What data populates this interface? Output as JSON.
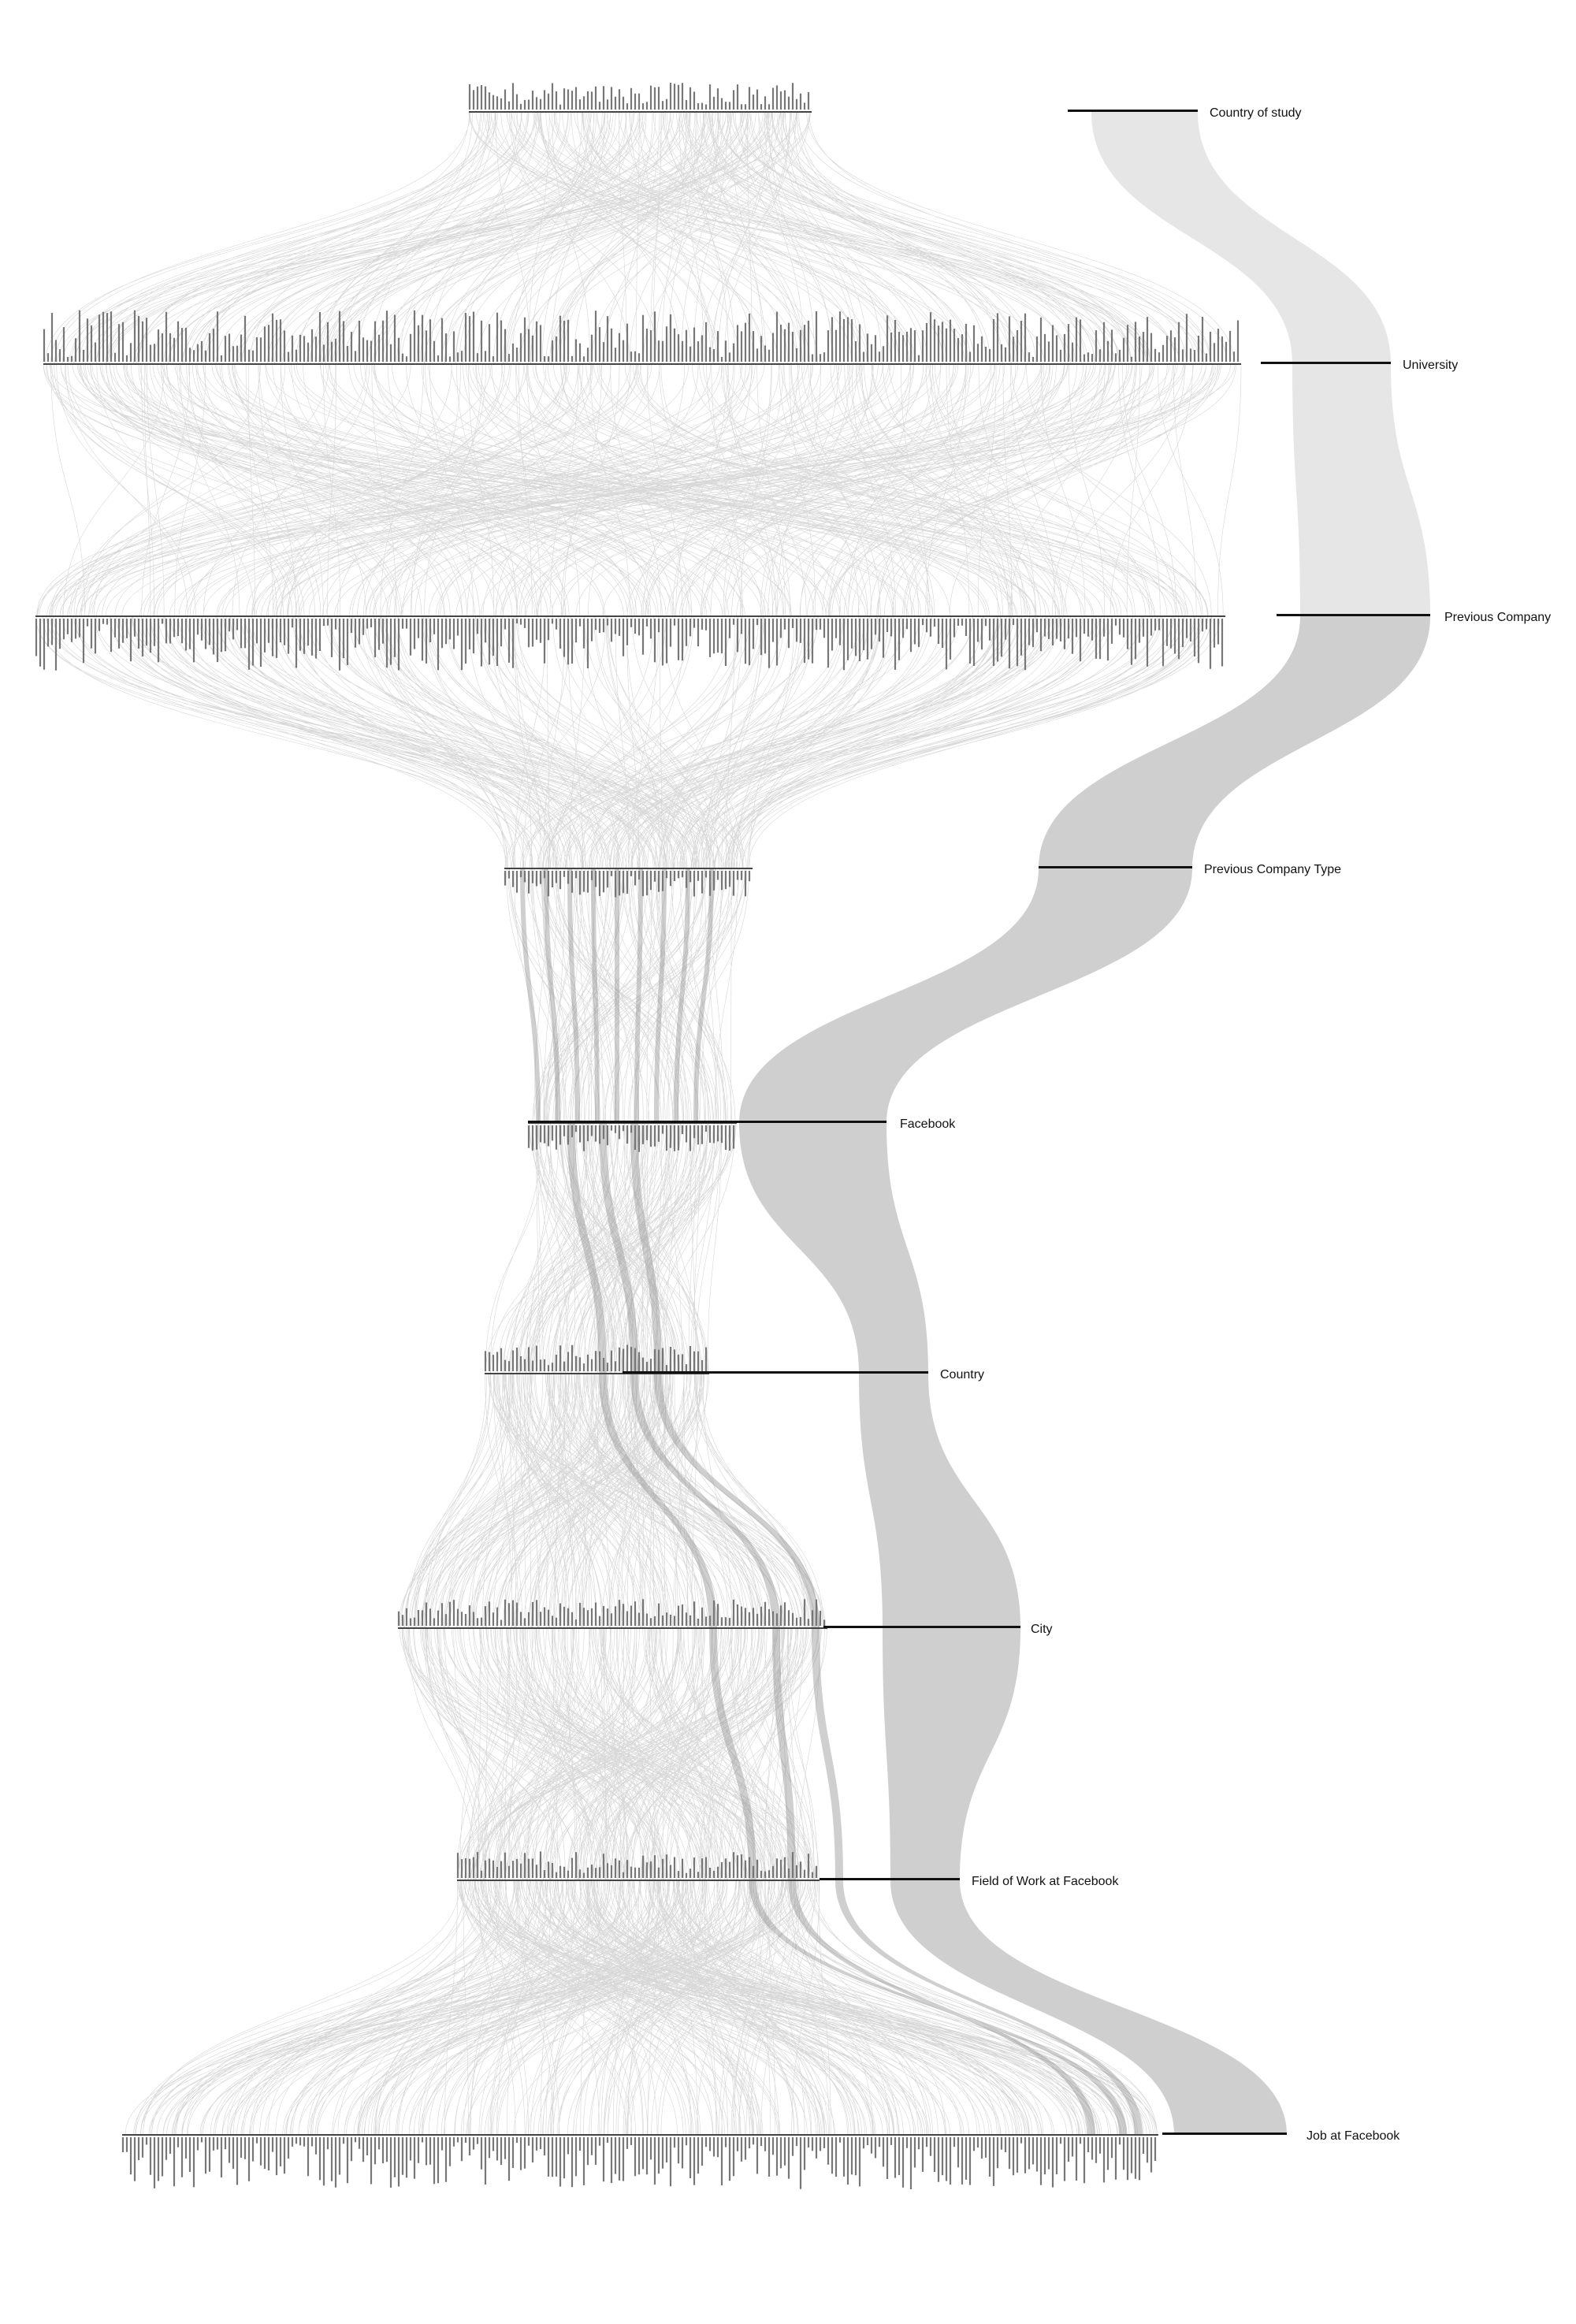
{
  "diagram": {
    "type": "parallel-sets / multi-level sankey",
    "link_color": "#cfcfcf",
    "light_link_color": "#e6e6e6",
    "thread_color": "#8c8c8c",
    "axis_color": "#111111",
    "levels": [
      {
        "name": "Country of study"
      },
      {
        "name": "University"
      },
      {
        "name": "Previous Company"
      },
      {
        "name": "Previous Company Type"
      },
      {
        "name": "Facebook"
      },
      {
        "name": "Country"
      },
      {
        "name": "City"
      },
      {
        "name": "Field of Work at Facebook"
      },
      {
        "name": "Job at Facebook"
      }
    ]
  }
}
